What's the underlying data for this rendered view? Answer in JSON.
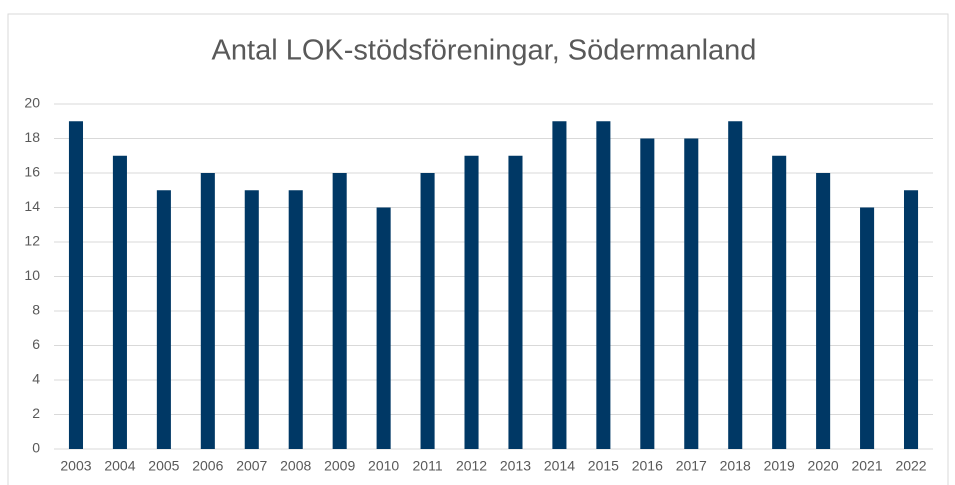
{
  "chart_data": {
    "type": "bar",
    "title": "Antal LOK-stödsföreningar, Södermanland",
    "categories": [
      "2003",
      "2004",
      "2005",
      "2006",
      "2007",
      "2008",
      "2009",
      "2010",
      "2011",
      "2012",
      "2013",
      "2014",
      "2015",
      "2016",
      "2017",
      "2018",
      "2019",
      "2020",
      "2021",
      "2022"
    ],
    "values": [
      19,
      17,
      15,
      16,
      15,
      15,
      16,
      14,
      16,
      17,
      17,
      19,
      19,
      18,
      18,
      19,
      17,
      16,
      14,
      15
    ],
    "color": "#003865",
    "ylim": [
      0,
      20
    ],
    "yticks": [
      0,
      2,
      4,
      6,
      8,
      10,
      12,
      14,
      16,
      18,
      20
    ],
    "grid": true
  }
}
